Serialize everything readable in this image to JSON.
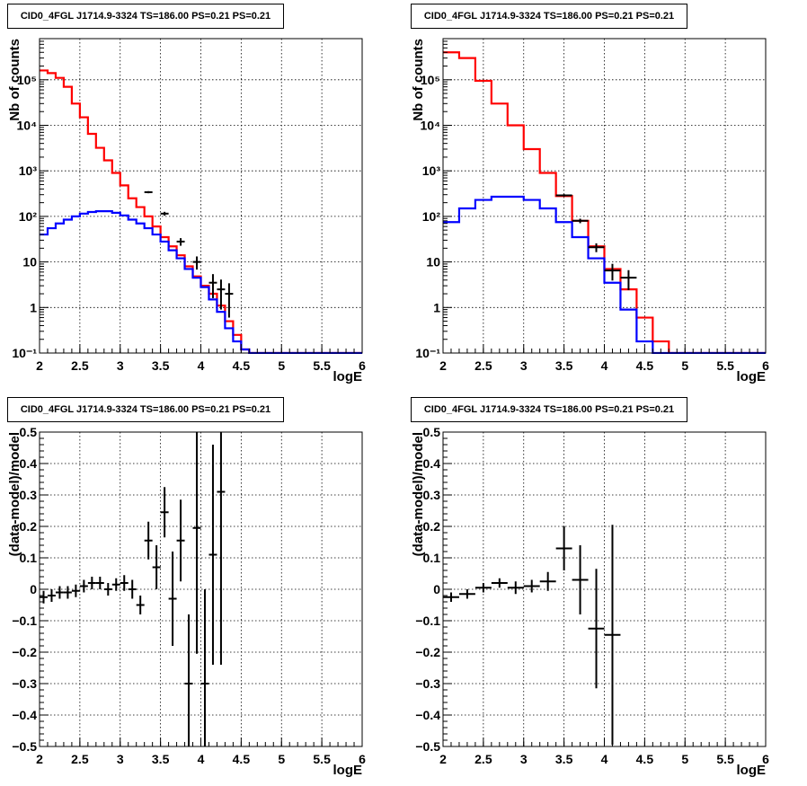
{
  "chart_data": [
    {
      "type": "line",
      "title": "CID0_4FGL J1714.9-3324 TS=186.00 PS=0.21 PS=0.21",
      "xlabel": "logE",
      "ylabel": "Nb of counts",
      "xlim": [
        2,
        6
      ],
      "ylim": [
        0.1,
        800000
      ],
      "log_y": true,
      "grid": true,
      "x_ticks": [
        "2",
        "2.5",
        "3",
        "3.5",
        "4",
        "4.5",
        "5",
        "5.5",
        "6"
      ],
      "y_ticks": [
        "10⁻¹",
        "1",
        "10",
        "10²",
        "10³",
        "10⁴",
        "10⁵"
      ],
      "bin_width": 0.1,
      "series": [
        {
          "kind": "hist",
          "color": "#ff0000",
          "x": [
            2.0,
            2.1,
            2.2,
            2.3,
            2.4,
            2.5,
            2.6,
            2.7,
            2.8,
            2.9,
            3.0,
            3.1,
            3.2,
            3.3,
            3.4,
            3.5,
            3.6,
            3.7,
            3.8,
            3.9,
            4.0,
            4.1,
            4.2,
            4.3,
            4.4,
            4.5,
            4.6,
            4.7,
            4.8,
            4.9,
            5.0,
            5.1,
            5.2,
            5.3,
            5.4,
            5.5,
            5.6,
            5.7,
            5.8,
            5.9
          ],
          "values": [
            160000,
            140000,
            110000,
            70000,
            30000,
            15000,
            6500,
            3200,
            1700,
            900,
            480,
            250,
            160,
            100,
            60,
            35,
            22,
            14,
            8,
            4.8,
            3.0,
            2.0,
            1.1,
            0.5,
            0.25,
            0.12,
            0.1,
            0.1,
            0.1,
            0.1,
            0.1,
            0.1,
            0.1,
            0.1,
            0.1,
            0.1,
            0.1,
            0.1,
            0.1,
            0.1
          ]
        },
        {
          "kind": "hist",
          "color": "#0000ff",
          "x": [
            2.0,
            2.1,
            2.2,
            2.3,
            2.4,
            2.5,
            2.6,
            2.7,
            2.8,
            2.9,
            3.0,
            3.1,
            3.2,
            3.3,
            3.4,
            3.5,
            3.6,
            3.7,
            3.8,
            3.9,
            4.0,
            4.1,
            4.2,
            4.3,
            4.4,
            4.5,
            4.6,
            4.7,
            4.8,
            4.9,
            5.0,
            5.1,
            5.2,
            5.3,
            5.4,
            5.5,
            5.6,
            5.7,
            5.8,
            5.9
          ],
          "values": [
            40,
            55,
            70,
            85,
            100,
            115,
            125,
            130,
            130,
            120,
            105,
            85,
            70,
            55,
            40,
            28,
            18,
            12,
            7,
            4.5,
            2.8,
            1.5,
            0.8,
            0.35,
            0.18,
            0.12,
            0.1,
            0.1,
            0.1,
            0.1,
            0.1,
            0.1,
            0.1,
            0.1,
            0.1,
            0.1,
            0.1,
            0.1,
            0.1,
            0.1
          ]
        },
        {
          "kind": "points",
          "color": "#000000",
          "x": [
            3.35,
            3.55,
            3.75,
            3.95,
            4.15,
            4.25,
            4.35
          ],
          "values": [
            340,
            115,
            28,
            10,
            3.5,
            2.5,
            2.0
          ],
          "errors": [
            18,
            11,
            5.3,
            3.2,
            1.9,
            1.6,
            1.4
          ]
        }
      ]
    },
    {
      "type": "line",
      "title": "CID0_4FGL J1714.9-3324 TS=186.00 PS=0.21 PS=0.21",
      "xlabel": "logE",
      "ylabel": "Nb of counts",
      "xlim": [
        2,
        6
      ],
      "ylim": [
        0.1,
        800000
      ],
      "log_y": true,
      "grid": true,
      "x_ticks": [
        "2",
        "2.5",
        "3",
        "3.5",
        "4",
        "4.5",
        "5",
        "5.5",
        "6"
      ],
      "y_ticks": [
        "10⁻¹",
        "1",
        "10",
        "10²",
        "10³",
        "10⁴",
        "10⁵"
      ],
      "bin_width": 0.2,
      "series": [
        {
          "kind": "hist",
          "color": "#ff0000",
          "x": [
            2.0,
            2.2,
            2.4,
            2.6,
            2.8,
            3.0,
            3.2,
            3.4,
            3.6,
            3.8,
            4.0,
            4.2,
            4.4,
            4.6,
            4.8,
            5.0,
            5.2,
            5.4,
            5.6,
            5.8
          ],
          "values": [
            400000,
            300000,
            95000,
            30000,
            10000,
            3000,
            900,
            280,
            80,
            22,
            7,
            2.5,
            0.6,
            0.18,
            0.1,
            0.1,
            0.1,
            0.1,
            0.1,
            0.1
          ]
        },
        {
          "kind": "hist",
          "color": "#0000ff",
          "x": [
            2.0,
            2.2,
            2.4,
            2.6,
            2.8,
            3.0,
            3.2,
            3.4,
            3.6,
            3.8,
            4.0,
            4.2,
            4.4,
            4.6,
            4.8,
            5.0,
            5.2,
            5.4,
            5.6,
            5.8
          ],
          "values": [
            75,
            150,
            230,
            270,
            270,
            230,
            150,
            75,
            35,
            12,
            3.5,
            0.9,
            0.18,
            0.1,
            0.1,
            0.1,
            0.1,
            0.1,
            0.1,
            0.1
          ]
        },
        {
          "kind": "points",
          "color": "#000000",
          "x": [
            3.5,
            3.7,
            3.9,
            4.1,
            4.3
          ],
          "values": [
            290,
            80,
            21,
            6.5,
            4.5
          ],
          "errors": [
            17,
            9,
            4.6,
            2.6,
            2.1
          ]
        }
      ]
    },
    {
      "type": "scatter",
      "title": "CID0_4FGL J1714.9-3324 TS=186.00 PS=0.21 PS=0.21",
      "xlabel": "logE",
      "ylabel": "(data-model)/model",
      "xlim": [
        2,
        6
      ],
      "ylim": [
        -0.5,
        0.5
      ],
      "grid": true,
      "x_ticks": [
        "2",
        "2.5",
        "3",
        "3.5",
        "4",
        "4.5",
        "5",
        "5.5",
        "6"
      ],
      "y_ticks": [
        "−0.5",
        "−0.4",
        "−0.3",
        "−0.2",
        "−0.1",
        "0",
        "0.1",
        "0.2",
        "0.3",
        "0.4",
        "0.5"
      ],
      "x_halfwidth": 0.05,
      "x": [
        2.05,
        2.15,
        2.25,
        2.35,
        2.45,
        2.55,
        2.65,
        2.75,
        2.85,
        2.95,
        3.05,
        3.15,
        3.25,
        3.35,
        3.45,
        3.55,
        3.65,
        3.75,
        3.85,
        3.95,
        4.05,
        4.15,
        4.25
      ],
      "y": [
        -0.025,
        -0.02,
        -0.01,
        -0.01,
        -0.005,
        0.01,
        0.02,
        0.02,
        0.0,
        0.015,
        0.02,
        0.0,
        -0.05,
        0.155,
        0.07,
        0.245,
        -0.03,
        0.155,
        -0.3,
        0.195,
        -0.3,
        0.11,
        0.31
      ],
      "errors": [
        0.02,
        0.02,
        0.02,
        0.02,
        0.02,
        0.02,
        0.02,
        0.02,
        0.02,
        0.02,
        0.025,
        0.03,
        0.03,
        0.06,
        0.07,
        0.08,
        0.15,
        0.13,
        0.22,
        0.4,
        0.3,
        0.35,
        0.55
      ],
      "color": "#000000"
    },
    {
      "type": "scatter",
      "title": "CID0_4FGL J1714.9-3324 TS=186.00 PS=0.21 PS=0.21",
      "xlabel": "logE",
      "ylabel": "(data-model)/model",
      "xlim": [
        2,
        6
      ],
      "ylim": [
        -0.5,
        0.5
      ],
      "grid": true,
      "x_ticks": [
        "2",
        "2.5",
        "3",
        "3.5",
        "4",
        "4.5",
        "5",
        "5.5",
        "6"
      ],
      "y_ticks": [
        "−0.5",
        "−0.4",
        "−0.3",
        "−0.2",
        "−0.1",
        "0",
        "0.1",
        "0.2",
        "0.3",
        "0.4",
        "0.5"
      ],
      "x_halfwidth": 0.1,
      "x": [
        2.1,
        2.3,
        2.5,
        2.7,
        2.9,
        3.1,
        3.3,
        3.5,
        3.7,
        3.9,
        4.1
      ],
      "y": [
        -0.025,
        -0.015,
        0.005,
        0.02,
        0.005,
        0.01,
        0.025,
        0.13,
        0.03,
        -0.125,
        -0.145
      ],
      "errors": [
        0.015,
        0.015,
        0.015,
        0.015,
        0.02,
        0.02,
        0.03,
        0.07,
        0.11,
        0.19,
        0.35
      ],
      "color": "#000000"
    }
  ]
}
